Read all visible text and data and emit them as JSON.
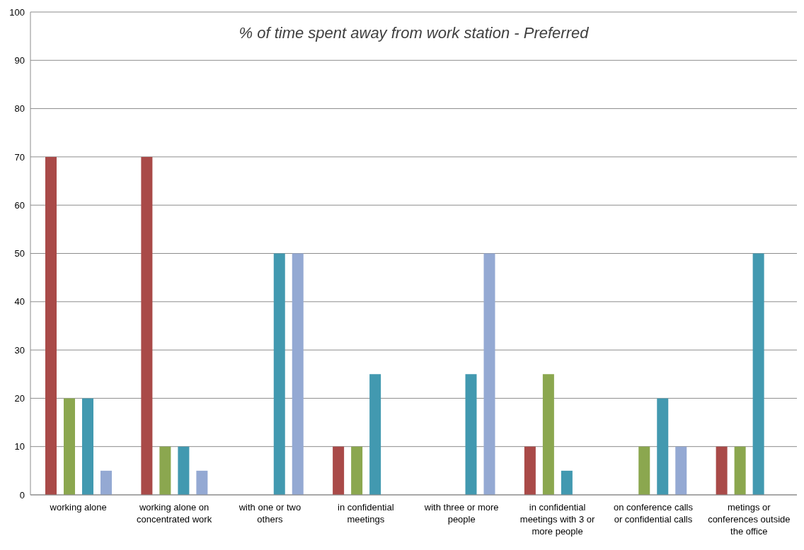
{
  "chart_data": {
    "type": "bar",
    "title": "% of time spent away from work station - Preferred",
    "categories": [
      "working alone",
      "working alone on concentrated work",
      "with one or two others",
      "in confidential meetings",
      "with three or more people",
      "in confidential meetings with 3 or more people",
      "on conference calls or confidential calls",
      "metings or conferences outside the office"
    ],
    "series": [
      {
        "color": "#a94a48",
        "values": [
          70,
          70,
          0,
          10,
          0,
          10,
          0,
          10
        ]
      },
      {
        "color": "#8ba74f",
        "values": [
          20,
          10,
          0,
          10,
          0,
          25,
          10,
          10
        ]
      },
      {
        "color": "#4299b0",
        "values": [
          20,
          10,
          50,
          25,
          25,
          5,
          20,
          50
        ]
      },
      {
        "color": "#94a9d3",
        "values": [
          5,
          5,
          50,
          0,
          50,
          0,
          10,
          0
        ]
      }
    ],
    "ylim": [
      0,
      100
    ],
    "yticks": [
      0,
      10,
      20,
      30,
      40,
      50,
      60,
      70,
      80,
      90,
      100
    ],
    "grid": "y"
  }
}
